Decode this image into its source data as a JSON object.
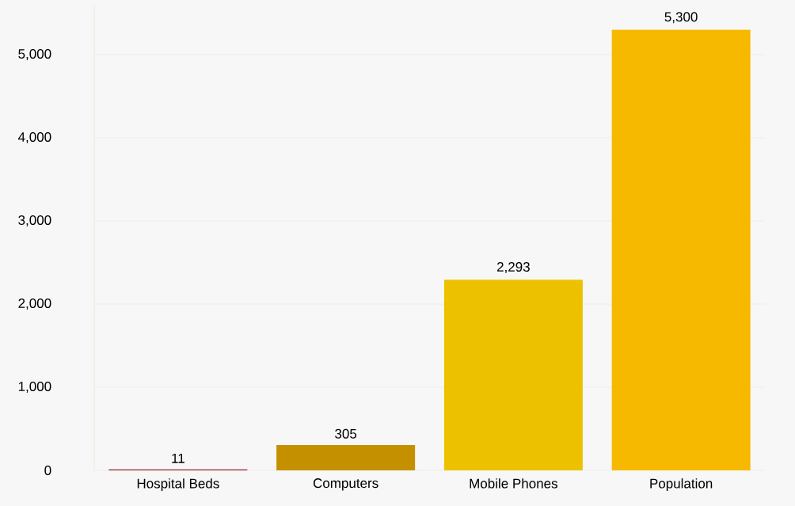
{
  "chart_data": {
    "type": "bar",
    "categories": [
      "Hospital Beds",
      "Computers",
      "Mobile Phones",
      "Population"
    ],
    "values": [
      11,
      305,
      2293,
      5300
    ],
    "colors": [
      "#8b1a2b",
      "#c49000",
      "#ecc200",
      "#f7b800"
    ],
    "value_labels": [
      "11",
      "305",
      "2,293",
      "5,300"
    ],
    "ylim": [
      0,
      5600
    ],
    "yticks": [
      0,
      {
        "value": 1000,
        "label": "1,000"
      },
      {
        "value": 2000,
        "label": "2,000"
      },
      {
        "value": 3000,
        "label": "3,000"
      },
      {
        "value": 4000,
        "label": "4,000"
      },
      {
        "value": 5000,
        "label": "5,000"
      }
    ],
    "grid": "y"
  }
}
